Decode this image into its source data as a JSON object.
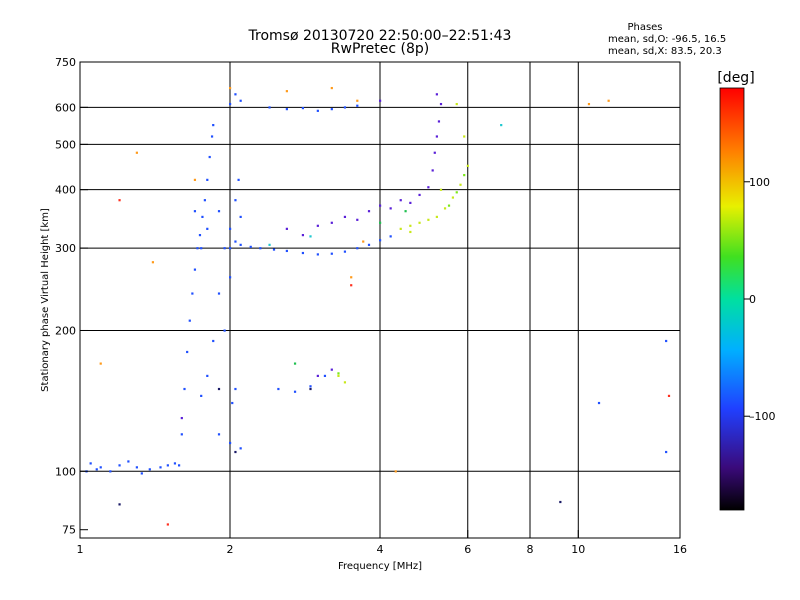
{
  "chart_data": {
    "type": "scatter",
    "title": "Tromsø 20130720 22:50:00–22:51:43",
    "subtitle": "RwPretec (8p)",
    "phases": {
      "header": "Phases",
      "o_line": "mean, sd,O:  -96.5, 16.5",
      "x_line": "mean, sd,X:   83.5, 20.3"
    },
    "xlabel": "Frequency [MHz]",
    "ylabel": "Stationary phase Virtual Height [km]",
    "x_scale": "log",
    "y_scale": "log",
    "xlim": [
      1,
      16
    ],
    "ylim": [
      72,
      750
    ],
    "x_ticks": [
      1,
      2,
      4,
      6,
      8,
      10,
      16
    ],
    "x_tick_labels": [
      "1",
      "2",
      "4",
      "6",
      "8",
      "10",
      "16"
    ],
    "x_grid": [
      2,
      4,
      6,
      8,
      10
    ],
    "y_ticks": [
      75,
      100,
      200,
      300,
      400,
      500,
      600,
      750
    ],
    "y_tick_labels": [
      "75",
      "100",
      "200",
      "300",
      "400",
      "500",
      "600",
      "750"
    ],
    "y_grid": [
      100,
      200,
      300,
      400,
      500,
      600
    ],
    "grid": true,
    "colorbar": {
      "label": "[deg]",
      "range": [
        -180,
        180
      ],
      "ticks": [
        100,
        0,
        -100
      ],
      "tick_labels": [
        "100",
        "0",
        "–100"
      ]
    },
    "series": [
      {
        "phase": -100,
        "color": "#2050ff",
        "points": [
          [
            1.03,
            100
          ],
          [
            1.05,
            104
          ],
          [
            1.08,
            101
          ],
          [
            1.1,
            102
          ],
          [
            1.15,
            100
          ],
          [
            1.2,
            103
          ],
          [
            1.25,
            105
          ],
          [
            1.3,
            102
          ],
          [
            1.33,
            99
          ],
          [
            1.38,
            101
          ],
          [
            1.45,
            102
          ],
          [
            1.5,
            103
          ],
          [
            1.55,
            104
          ],
          [
            1.58,
            103
          ],
          [
            1.6,
            120
          ],
          [
            1.62,
            150
          ],
          [
            1.64,
            180
          ],
          [
            1.66,
            210
          ],
          [
            1.68,
            240
          ],
          [
            1.7,
            270
          ],
          [
            1.72,
            300
          ],
          [
            1.74,
            320
          ],
          [
            1.76,
            350
          ],
          [
            1.78,
            380
          ],
          [
            1.8,
            420
          ],
          [
            1.82,
            470
          ],
          [
            1.84,
            520
          ],
          [
            1.85,
            550
          ],
          [
            1.75,
            145
          ],
          [
            1.8,
            160
          ],
          [
            1.85,
            190
          ],
          [
            1.9,
            240
          ],
          [
            1.95,
            300
          ],
          [
            2.0,
            330
          ],
          [
            2.05,
            380
          ],
          [
            2.08,
            420
          ],
          [
            2.0,
            260
          ],
          [
            1.95,
            200
          ],
          [
            2.1,
            350
          ],
          [
            2.05,
            150
          ],
          [
            2.02,
            140
          ],
          [
            1.7,
            360
          ],
          [
            1.75,
            300
          ],
          [
            1.8,
            330
          ],
          [
            1.9,
            360
          ],
          [
            2.0,
            300
          ],
          [
            2.05,
            310
          ],
          [
            2.1,
            305
          ],
          [
            2.2,
            302
          ],
          [
            2.3,
            300
          ],
          [
            2.45,
            298
          ],
          [
            2.6,
            296
          ],
          [
            2.8,
            293
          ],
          [
            3.0,
            291
          ],
          [
            3.2,
            292
          ],
          [
            3.4,
            295
          ],
          [
            3.6,
            300
          ],
          [
            3.8,
            305
          ],
          [
            4.0,
            312
          ],
          [
            4.2,
            318
          ],
          [
            2.0,
            610
          ],
          [
            2.05,
            640
          ],
          [
            2.1,
            620
          ],
          [
            2.4,
            600
          ],
          [
            2.6,
            595
          ],
          [
            2.8,
            598
          ],
          [
            3.0,
            590
          ],
          [
            3.2,
            595
          ],
          [
            3.4,
            600
          ],
          [
            3.6,
            605
          ],
          [
            2.5,
            150
          ],
          [
            2.7,
            148
          ],
          [
            2.9,
            152
          ],
          [
            3.1,
            160
          ],
          [
            1.9,
            120
          ],
          [
            2.0,
            115
          ],
          [
            2.1,
            112
          ],
          [
            15.0,
            110
          ],
          [
            11.0,
            140
          ],
          [
            15.0,
            190
          ]
        ]
      },
      {
        "phase": -120,
        "color": "#5a20d8",
        "points": [
          [
            2.6,
            330
          ],
          [
            2.8,
            320
          ],
          [
            3.0,
            335
          ],
          [
            3.2,
            340
          ],
          [
            3.4,
            350
          ],
          [
            3.6,
            345
          ],
          [
            3.8,
            360
          ],
          [
            4.0,
            370
          ],
          [
            4.2,
            365
          ],
          [
            4.4,
            380
          ],
          [
            4.6,
            375
          ],
          [
            4.8,
            390
          ],
          [
            5.0,
            405
          ],
          [
            5.1,
            440
          ],
          [
            5.15,
            480
          ],
          [
            5.2,
            520
          ],
          [
            5.25,
            560
          ],
          [
            5.3,
            610
          ],
          [
            5.2,
            640
          ],
          [
            4.0,
            620
          ],
          [
            3.0,
            160
          ],
          [
            3.2,
            165
          ],
          [
            1.6,
            130
          ]
        ]
      },
      {
        "phase": -150,
        "color": "#1a1a66",
        "points": [
          [
            1.9,
            150
          ],
          [
            2.05,
            110
          ],
          [
            9.2,
            86
          ],
          [
            1.2,
            85
          ],
          [
            2.9,
            150
          ]
        ]
      },
      {
        "phase": 90,
        "color": "#c8e81a",
        "points": [
          [
            4.4,
            330
          ],
          [
            4.6,
            335
          ],
          [
            4.8,
            340
          ],
          [
            5.0,
            345
          ],
          [
            5.2,
            350
          ],
          [
            5.4,
            365
          ],
          [
            5.6,
            385
          ],
          [
            5.8,
            410
          ],
          [
            6.0,
            450
          ],
          [
            5.9,
            520
          ],
          [
            5.7,
            610
          ],
          [
            4.6,
            325
          ],
          [
            5.3,
            400
          ],
          [
            3.3,
            160
          ],
          [
            3.4,
            155
          ]
        ]
      },
      {
        "phase": 70,
        "color": "#7be81a",
        "points": [
          [
            5.5,
            370
          ],
          [
            5.7,
            395
          ],
          [
            5.9,
            430
          ],
          [
            3.3,
            162
          ]
        ]
      },
      {
        "phase": 20,
        "color": "#20c050",
        "points": [
          [
            4.0,
            340
          ],
          [
            4.5,
            360
          ],
          [
            2.7,
            170
          ]
        ]
      },
      {
        "phase": -40,
        "color": "#20c8d0",
        "points": [
          [
            2.4,
            305
          ],
          [
            2.9,
            318
          ],
          [
            7.0,
            550
          ]
        ]
      },
      {
        "phase": 140,
        "color": "#ff9a1a",
        "points": [
          [
            2.0,
            660
          ],
          [
            2.6,
            650
          ],
          [
            3.2,
            660
          ],
          [
            3.6,
            620
          ],
          [
            1.7,
            420
          ],
          [
            1.3,
            480
          ],
          [
            10.5,
            610
          ],
          [
            11.5,
            620
          ],
          [
            1.4,
            280
          ],
          [
            1.1,
            170
          ],
          [
            4.3,
            100
          ],
          [
            3.5,
            260
          ],
          [
            3.7,
            310
          ]
        ]
      },
      {
        "phase": 170,
        "color": "#ff3020",
        "points": [
          [
            3.5,
            250
          ],
          [
            1.2,
            380
          ],
          [
            15.2,
            145
          ],
          [
            1.5,
            77
          ]
        ]
      }
    ]
  }
}
